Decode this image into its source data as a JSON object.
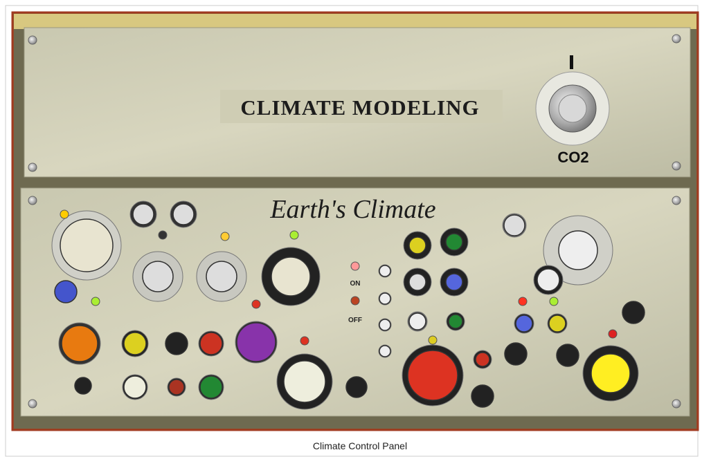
{
  "image": {
    "top_panel": {
      "title": "CLIMATE MODELING",
      "knob_label": "CO2"
    },
    "bottom_panel": {
      "title": "Earth's Climate",
      "switch_labels": [
        "ON",
        "OFF"
      ]
    }
  },
  "caption": "Climate Control Panel"
}
